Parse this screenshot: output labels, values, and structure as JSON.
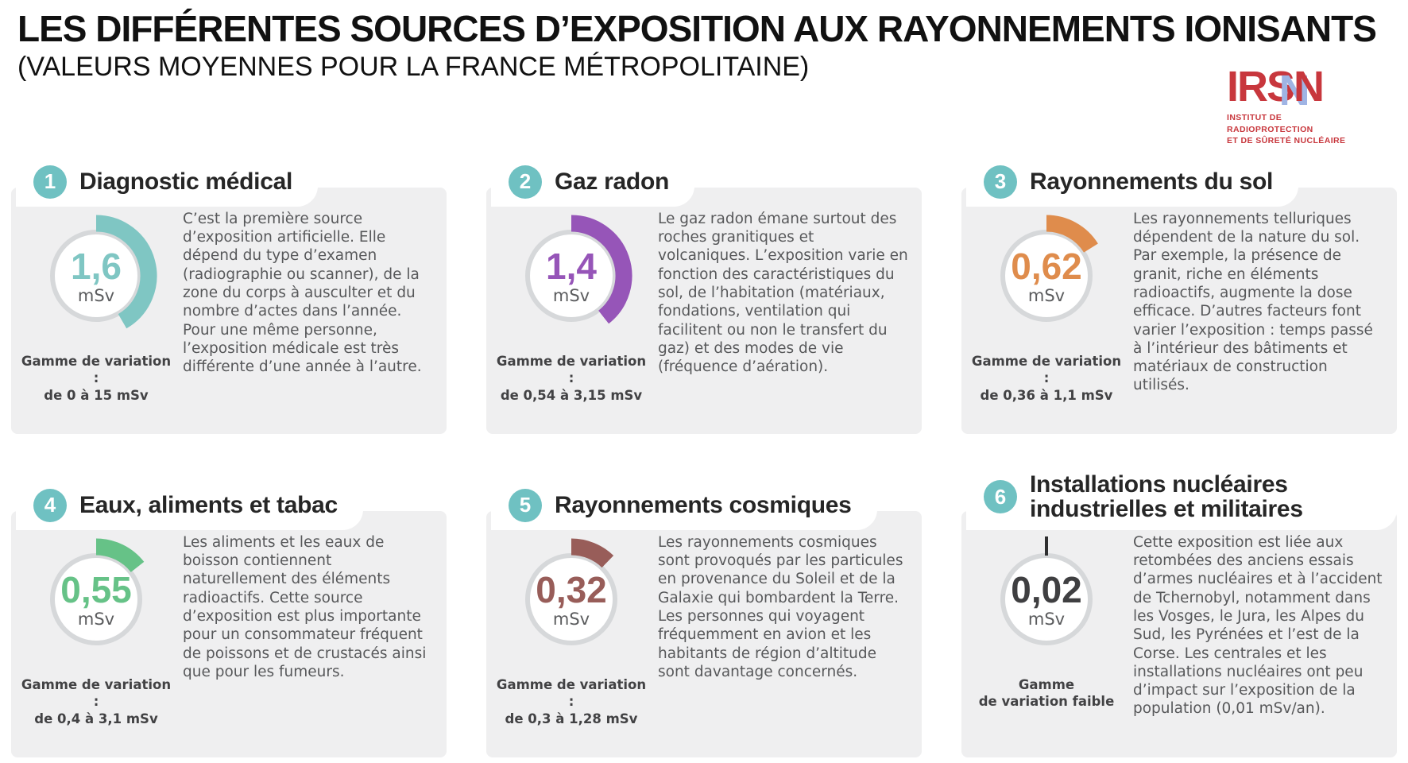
{
  "page": {
    "title": "LES DIFFÉRENTES SOURCES D’EXPOSITION AUX RAYONNEMENTS IONISANTS",
    "subtitle": "(VALEURS MOYENNES POUR LA FRANCE MÉTROPOLITAINE)"
  },
  "logo": {
    "letters_irs": "IRS",
    "letter_n": "N",
    "subtext_line1": "INSTITUT DE RADIOPROTECTION",
    "subtext_line2": "ET DE SÛRETÉ NUCLÉAIRE",
    "red": "#c8373d",
    "blue": "#9fb4e4"
  },
  "colors": {
    "badge_teal": "#6fc1c2",
    "card_background": "#efeff0",
    "gauge_track": "#d6d8da",
    "body_text": "#57585a"
  },
  "cards": [
    {
      "number": "1",
      "title": "Diagnostic médical",
      "value": "1,6",
      "unit": "mSv",
      "accent": "#7fc6c3",
      "sweep_deg": 150,
      "range_label": "Gamme de variation :",
      "range_value": "de 0 à 15 mSv",
      "description": "C’est la première source d’exposition artificielle. Elle dépend du type d’examen (radiographie ou scanner), de la zone du corps à ausculter et du nombre d’actes dans l’année. Pour une même personne, l’exposition médicale est très différente d’une année à l’autre."
    },
    {
      "number": "2",
      "title": "Gaz radon",
      "value": "1,4",
      "unit": "mSv",
      "accent": "#9655b8",
      "sweep_deg": 142,
      "range_label": "Gamme de variation :",
      "range_value": "de 0,54 à 3,15 mSv",
      "description": "Le gaz radon émane surtout des roches granitiques et volcaniques. L’exposition varie en fonction des caractéristiques du sol, de l’habitation (matériaux, fondations, ventilation qui facilitent ou non le transfert du gaz) et des modes de vie (fréquence d’aération)."
    },
    {
      "number": "3",
      "title": "Rayonnements du sol",
      "value": "0,62",
      "unit": "mSv",
      "accent": "#df8c4c",
      "sweep_deg": 58,
      "range_label": "Gamme de variation :",
      "range_value": "de 0,36 à 1,1 mSv",
      "description": "Les rayonnements telluriques dépendent de la nature du sol. Par exemple, la présence de granit, riche en éléments radioactifs, augmente la dose efficace. D’autres facteurs font varier l’exposition : temps passé à l’intérieur des bâtiments et matériaux de construction utilisés."
    },
    {
      "number": "4",
      "title": "Eaux, aliments et tabac",
      "value": "0,55",
      "unit": "mSv",
      "accent": "#66c287",
      "sweep_deg": 52,
      "range_label": "Gamme de variation :",
      "range_value": "de 0,4 à 3,1 mSv",
      "description": "Les aliments et les eaux de boisson contiennent naturellement des éléments radioactifs. Cette source d’exposition est plus importante pour un consommateur fréquent de poissons et de crustacés ainsi que pour les fumeurs."
    },
    {
      "number": "5",
      "title": "Rayonnements cosmiques",
      "value": "0,32",
      "unit": "mSv",
      "accent": "#985d59",
      "sweep_deg": 44,
      "range_label": "Gamme de variation :",
      "range_value": "de 0,3 à 1,28 mSv",
      "description": "Les rayonnements cosmiques sont provoqués par les particules en provenance du Soleil et de la Galaxie qui bombardent la Terre.\nLes personnes qui voyagent fréquemment en avion et les habitants de région d’altitude sont davantage concernés."
    },
    {
      "number": "6",
      "title": "Installations nucléaires industrielles et militaires",
      "value": "0,02",
      "unit": "mSv",
      "accent": "#3f3f41",
      "sweep_deg": 0,
      "tick": true,
      "tick_color": "#2f2f30",
      "range_label": "Gamme",
      "range_value": "de variation faible",
      "description": "Cette exposition est liée aux retombées des anciens essais d’armes nucléaires et à l’accident de Tchernobyl, notamment dans les Vosges, le Jura, les Alpes du Sud, les Pyrénées et l’est de la Corse. Les centrales et les installations nucléaires ont peu d’impact sur l’exposition de la population (0,01 mSv/an)."
    }
  ]
}
